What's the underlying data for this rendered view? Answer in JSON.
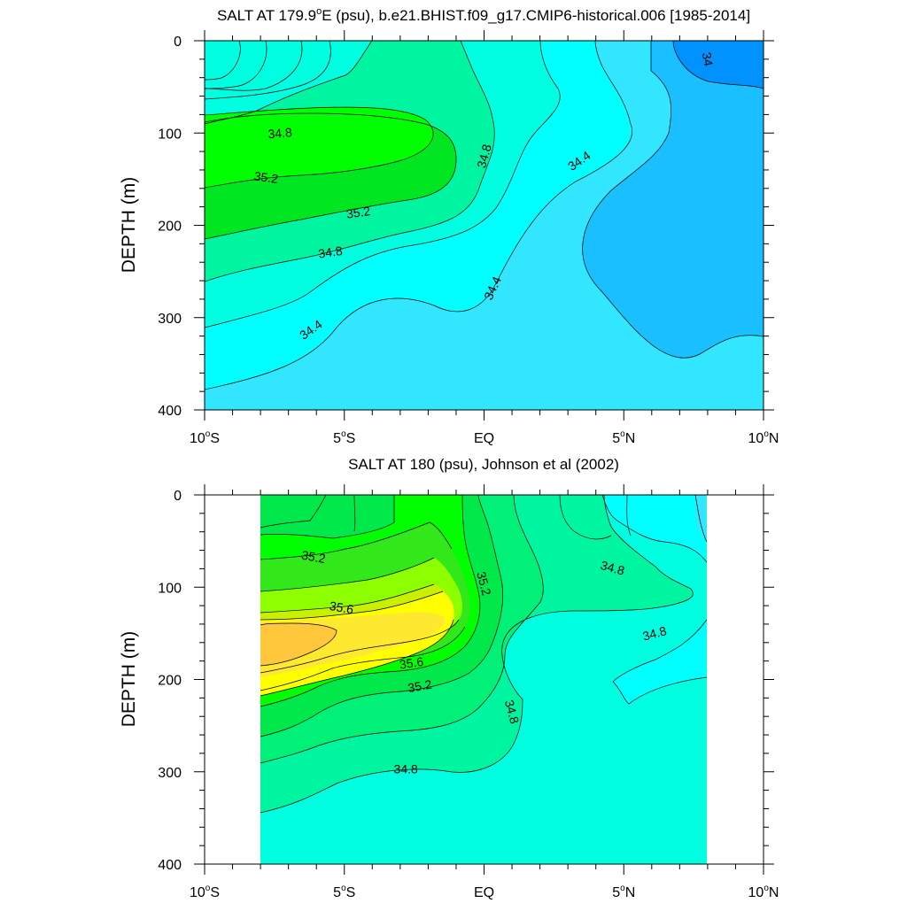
{
  "chart_data": [
    {
      "type": "contour",
      "title": "SALT AT 179.9°E (psu), b.e21.BHIST.f09_g17.CMIP6-historical.006 [1985-2014]",
      "title_main": "SALT AT 179.9",
      "title_super": "o",
      "title_rest": "E (psu), b.e21.BHIST.f09_g17.CMIP6-historical.006 [1985-2014]",
      "ylabel": "DEPTH (m)",
      "xlim": [
        -10,
        10
      ],
      "ylim": [
        0,
        400
      ],
      "y_reversed": true,
      "yticks": [
        0,
        100,
        200,
        300,
        400
      ],
      "xticks": [
        {
          "value": -10,
          "main": "10",
          "deg": "o",
          "hemi": "S"
        },
        {
          "value": -5,
          "main": "5",
          "deg": "o",
          "hemi": "S"
        },
        {
          "value": 0,
          "main": "EQ",
          "deg": "",
          "hemi": ""
        },
        {
          "value": 5,
          "main": "5",
          "deg": "o",
          "hemi": "N"
        },
        {
          "value": 10,
          "main": "10",
          "deg": "o",
          "hemi": "N"
        }
      ],
      "contour_interval": 0.2,
      "data_x_range": [
        -10,
        10
      ],
      "line_labels": [
        {
          "text": "34",
          "x": 8.0,
          "y": 20,
          "angle": 80
        },
        {
          "text": "34.8",
          "x": -7.3,
          "y": 100,
          "angle": -5
        },
        {
          "text": "35.2",
          "x": -7.8,
          "y": 148,
          "angle": 8
        },
        {
          "text": "35.2",
          "x": -4.5,
          "y": 186,
          "angle": -8
        },
        {
          "text": "34.8",
          "x": -5.5,
          "y": 229,
          "angle": -8
        },
        {
          "text": "34.8",
          "x": 0.0,
          "y": 125,
          "angle": -75
        },
        {
          "text": "34.4",
          "x": 3.4,
          "y": 130,
          "angle": -35
        },
        {
          "text": "34.4",
          "x": 0.3,
          "y": 268,
          "angle": -65
        },
        {
          "text": "34.4",
          "x": -6.2,
          "y": 313,
          "angle": -35
        }
      ]
    },
    {
      "type": "contour",
      "title": "SALT AT 180 (psu), Johnson et al (2002)",
      "title_main": "SALT AT 180 (psu), Johnson et al (2002)",
      "title_super": "",
      "title_rest": "",
      "ylabel": "DEPTH (m)",
      "xlim": [
        -10,
        10
      ],
      "ylim": [
        0,
        400
      ],
      "y_reversed": true,
      "yticks": [
        0,
        100,
        200,
        300,
        400
      ],
      "xticks": [
        {
          "value": -10,
          "main": "10",
          "deg": "o",
          "hemi": "S"
        },
        {
          "value": -5,
          "main": "5",
          "deg": "o",
          "hemi": "S"
        },
        {
          "value": 0,
          "main": "EQ",
          "deg": "",
          "hemi": ""
        },
        {
          "value": 5,
          "main": "5",
          "deg": "o",
          "hemi": "N"
        },
        {
          "value": 10,
          "main": "10",
          "deg": "o",
          "hemi": "N"
        }
      ],
      "contour_interval": 0.1,
      "data_x_range": [
        -8,
        8
      ],
      "line_labels": [
        {
          "text": "35.2",
          "x": -6.1,
          "y": 67,
          "angle": 10
        },
        {
          "text": "35.6",
          "x": -5.1,
          "y": 122,
          "angle": 10
        },
        {
          "text": "35.6",
          "x": -2.6,
          "y": 182,
          "angle": -8
        },
        {
          "text": "35.2",
          "x": -2.3,
          "y": 207,
          "angle": -10
        },
        {
          "text": "35.2",
          "x": 0.0,
          "y": 96,
          "angle": 75
        },
        {
          "text": "34.8",
          "x": 1.0,
          "y": 235,
          "angle": 75
        },
        {
          "text": "34.8",
          "x": -2.8,
          "y": 297,
          "angle": 0
        },
        {
          "text": "34.8",
          "x": 4.6,
          "y": 79,
          "angle": 15
        },
        {
          "text": "34.8",
          "x": 6.1,
          "y": 150,
          "angle": -15
        }
      ]
    }
  ]
}
